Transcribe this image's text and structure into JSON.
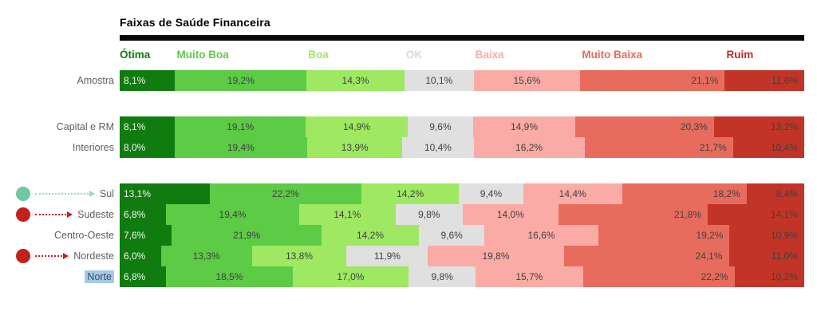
{
  "title": "Faixas de Saúde Financeira",
  "chart_data": {
    "type": "bar",
    "subtype": "100%-stacked-horizontal",
    "title": "Faixas de Saúde Financeira",
    "value_suffix": "%",
    "decimal_separator": ",",
    "grid": false,
    "legend_position": "top",
    "categories": [
      "Ótima",
      "Muito Boa",
      "Boa",
      "OK",
      "Baixa",
      "Muito Baixa",
      "Ruim"
    ],
    "series_colors": [
      "#107C10",
      "#5DCB46",
      "#9EE862",
      "#E0E0E0",
      "#FBABA5",
      "#E76C5D",
      "#C23427"
    ],
    "header_text_colors": [
      "#107C10",
      "#5DCB46",
      "#9EE862",
      "#D8D8D8",
      "#FBABA5",
      "#E7695C",
      "#C02A1E"
    ],
    "label_alignments": [
      "left",
      "center",
      "center",
      "center",
      "center",
      "right",
      "right"
    ],
    "xlim": [
      0,
      100
    ],
    "rows": [
      {
        "label": "Amostra",
        "group": 0,
        "values": [
          8.1,
          19.2,
          14.3,
          10.1,
          15.6,
          21.1,
          11.6
        ]
      },
      {
        "label": "Capital e RM",
        "group": 1,
        "values": [
          8.1,
          19.1,
          14.9,
          9.6,
          14.9,
          20.3,
          13.2
        ]
      },
      {
        "label": "Interiores",
        "group": 1,
        "values": [
          8.0,
          19.4,
          13.9,
          10.4,
          16.2,
          21.7,
          10.4
        ]
      },
      {
        "label": "Sul",
        "group": 2,
        "values": [
          13.1,
          22.2,
          14.2,
          9.4,
          14.4,
          18.2,
          8.4
        ]
      },
      {
        "label": "Sudeste",
        "group": 2,
        "values": [
          6.8,
          19.4,
          14.1,
          9.8,
          14.0,
          21.8,
          14.1
        ]
      },
      {
        "label": "Centro-Oeste",
        "group": 2,
        "values": [
          7.6,
          21.9,
          14.2,
          9.6,
          16.6,
          19.2,
          10.9
        ]
      },
      {
        "label": "Nordeste",
        "group": 2,
        "values": [
          6.0,
          13.3,
          13.8,
          11.9,
          19.8,
          24.1,
          11.0
        ]
      },
      {
        "label": "Norte",
        "group": 2,
        "values": [
          6.8,
          18.5,
          17.0,
          9.8,
          15.7,
          22.2,
          10.2
        ]
      }
    ],
    "annotations": [
      {
        "row": "Sul",
        "shape": "dot-arrow",
        "dot_color": "#6FC8A1",
        "line_color": "#9AD6C0"
      },
      {
        "row": "Sudeste",
        "shape": "dot-arrow",
        "dot_color": "#C2211E",
        "line_color": "#C2211E"
      },
      {
        "row": "Nordeste",
        "shape": "dot-arrow",
        "dot_color": "#C2211E",
        "line_color": "#C2211E"
      }
    ],
    "highlighted_row": "Norte",
    "highlight_bg": "#A6C8E8"
  }
}
